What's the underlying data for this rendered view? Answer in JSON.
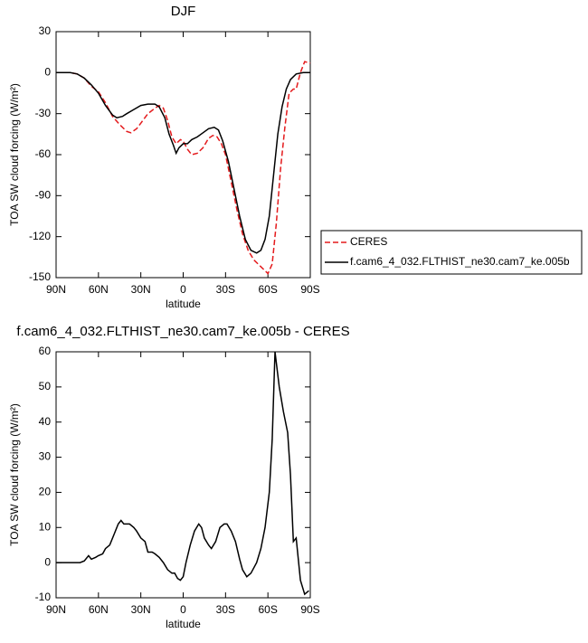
{
  "chart_data": [
    {
      "type": "line",
      "title": "DJF",
      "xlabel": "latitude",
      "ylabel": "TOA SW cloud forcing (W/m²)",
      "xlim": [
        90,
        -90
      ],
      "xticks": [
        {
          "value": 90,
          "label": "90N"
        },
        {
          "value": 60,
          "label": "60N"
        },
        {
          "value": 30,
          "label": "30N"
        },
        0,
        {
          "value": -30,
          "label": "30S"
        },
        {
          "value": -60,
          "label": "60S"
        },
        {
          "value": -90,
          "label": "90S"
        }
      ],
      "ylim": [
        -150,
        30
      ],
      "yticks": [
        -150,
        -120,
        -90,
        -60,
        -30,
        0,
        30
      ],
      "legend": "right",
      "series": [
        {
          "name": "CERES",
          "color": "#e41a1c",
          "dash": true,
          "x": [
            90,
            80,
            75,
            70,
            65,
            60,
            55,
            50,
            45,
            40,
            37,
            33,
            30,
            25,
            20,
            17,
            14,
            11,
            8,
            5,
            2,
            0,
            -3,
            -6,
            -10,
            -14,
            -18,
            -21,
            -24,
            -27,
            -30,
            -34,
            -38,
            -42,
            -46,
            -50,
            -55,
            -60,
            -63,
            -66,
            -69,
            -72,
            -75,
            -78,
            -80,
            -83,
            -86,
            -90
          ],
          "values": [
            0,
            0,
            -1,
            -4,
            -10,
            -14,
            -22,
            -32,
            -38,
            -43,
            -44,
            -41,
            -37,
            -30,
            -26,
            -24,
            -26,
            -35,
            -47,
            -52,
            -49,
            -50,
            -56,
            -60,
            -59,
            -55,
            -48,
            -46,
            -47,
            -52,
            -60,
            -80,
            -100,
            -118,
            -130,
            -137,
            -142,
            -147,
            -140,
            -110,
            -70,
            -40,
            -15,
            -12,
            -12,
            0,
            8,
            7
          ]
        },
        {
          "name": "f.cam6_4_032.FLTHIST_ne30.cam7_ke.005b",
          "color": "#000000",
          "dash": false,
          "x": [
            90,
            80,
            75,
            70,
            65,
            60,
            55,
            50,
            47,
            43,
            40,
            35,
            30,
            25,
            20,
            17,
            13,
            10,
            7,
            5,
            3,
            0,
            -3,
            -6,
            -10,
            -14,
            -18,
            -22,
            -25,
            -28,
            -32,
            -36,
            -40,
            -44,
            -48,
            -52,
            -55,
            -58,
            -61,
            -64,
            -67,
            -70,
            -73,
            -76,
            -80,
            -85,
            -90
          ],
          "values": [
            0,
            0,
            -1,
            -4,
            -9,
            -15,
            -24,
            -31,
            -33,
            -32,
            -30,
            -27,
            -24,
            -23,
            -23,
            -25,
            -33,
            -45,
            -53,
            -59,
            -55,
            -52,
            -52,
            -49,
            -47,
            -44,
            -41,
            -40,
            -42,
            -50,
            -65,
            -85,
            -105,
            -122,
            -130,
            -132,
            -130,
            -122,
            -105,
            -75,
            -45,
            -25,
            -12,
            -5,
            -1,
            0,
            0
          ]
        }
      ]
    },
    {
      "type": "line",
      "title": "f.cam6_4_032.FLTHIST_ne30.cam7_ke.005b - CERES",
      "xlabel": "latitude",
      "ylabel": "TOA SW cloud forcing (W/m²)",
      "xlim": [
        90,
        -90
      ],
      "xticks": [
        {
          "value": 90,
          "label": "90N"
        },
        {
          "value": 60,
          "label": "60N"
        },
        {
          "value": 30,
          "label": "30N"
        },
        0,
        {
          "value": -30,
          "label": "30S"
        },
        {
          "value": -60,
          "label": "60S"
        },
        {
          "value": -90,
          "label": "90S"
        }
      ],
      "ylim": [
        -10,
        60
      ],
      "yticks": [
        -10,
        0,
        10,
        20,
        30,
        40,
        50,
        60
      ],
      "series": [
        {
          "color": "#000000",
          "dash": false,
          "x": [
            90,
            80,
            73,
            70,
            67,
            65,
            62,
            60,
            57,
            55,
            52,
            49,
            46,
            44,
            42,
            38,
            35,
            33,
            30,
            27,
            25,
            22,
            20,
            17,
            14,
            11,
            8,
            6,
            4,
            2,
            0,
            -2,
            -5,
            -8,
            -11,
            -13,
            -15,
            -18,
            -20,
            -23,
            -26,
            -29,
            -31,
            -34,
            -37,
            -40,
            -42,
            -45,
            -48,
            -52,
            -55,
            -58,
            -61,
            -63,
            -65,
            -68,
            -71,
            -74,
            -76,
            -78,
            -80,
            -83,
            -86,
            -89
          ],
          "values": [
            0,
            0,
            0,
            0.5,
            2,
            1,
            1.5,
            2,
            2.5,
            4,
            5,
            8,
            11,
            12,
            11,
            11,
            10,
            9,
            7,
            6,
            3,
            3,
            2.5,
            1.5,
            0,
            -2,
            -3,
            -3,
            -4.5,
            -5,
            -4,
            0,
            5,
            9,
            11,
            10,
            7,
            5,
            4,
            6,
            10,
            11,
            11,
            9,
            6,
            1,
            -2,
            -4,
            -3,
            0,
            4,
            10,
            20,
            35,
            60,
            50,
            43,
            37,
            25,
            6,
            7,
            -5,
            -9,
            -8
          ]
        }
      ]
    }
  ]
}
